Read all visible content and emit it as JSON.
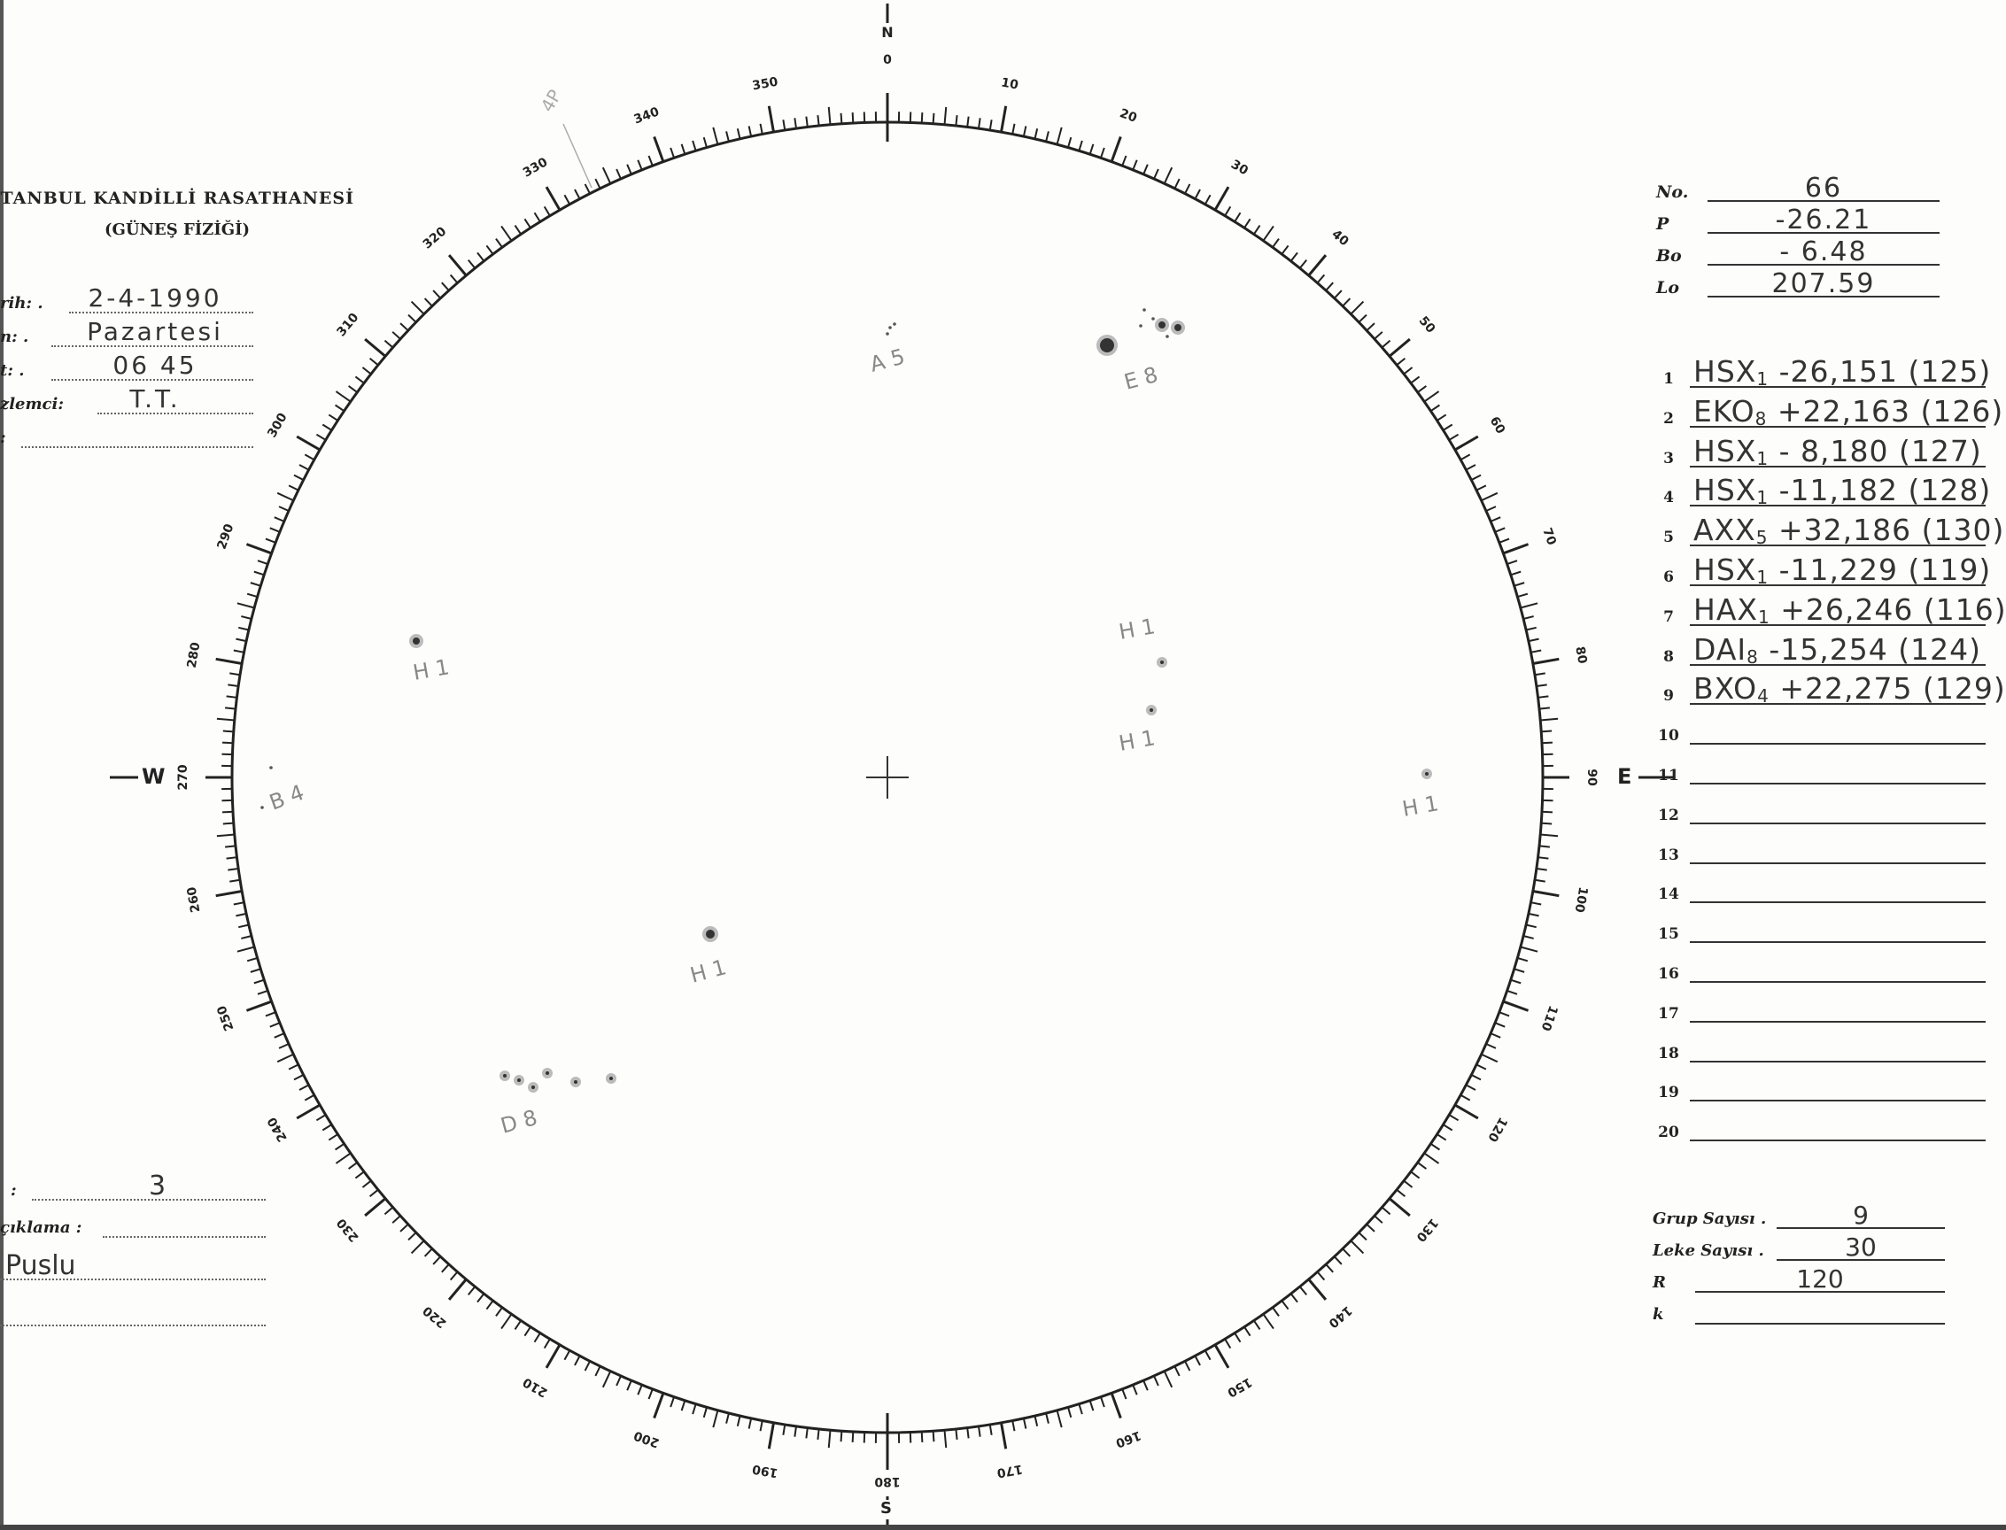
{
  "header": {
    "title": "TANBUL  KANDİLLİ  RASATHANESİ",
    "subtitle": "(GÜNEŞ FİZİĞİ)"
  },
  "observation": {
    "fields": [
      {
        "label": "rih: .",
        "value": "2-4-1990"
      },
      {
        "label": "n: .",
        "value": "Pazartesi"
      },
      {
        "label": "t: .",
        "value": "06 45"
      },
      {
        "label": "zlemci:",
        "value": "T.T."
      },
      {
        "label": ":",
        "value": ""
      }
    ]
  },
  "parameters": [
    {
      "label": "No.",
      "value": "66"
    },
    {
      "label": "P",
      "value": "-26.21"
    },
    {
      "label": "Bo",
      "value": "- 6.48"
    },
    {
      "label": "Lo",
      "value": "207.59"
    }
  ],
  "groups": [
    {
      "n": "1",
      "cls": "HSX",
      "sub": "1",
      "pos": "-26,151",
      "id": "(125)"
    },
    {
      "n": "2",
      "cls": "EKO",
      "sub": "8",
      "pos": "+22,163",
      "id": "(126)"
    },
    {
      "n": "3",
      "cls": "HSX",
      "sub": "1",
      "pos": "- 8,180",
      "id": "(127)"
    },
    {
      "n": "4",
      "cls": "HSX",
      "sub": "1",
      "pos": "-11,182",
      "id": "(128)"
    },
    {
      "n": "5",
      "cls": "AXX",
      "sub": "5",
      "pos": "+32,186",
      "id": "(130)"
    },
    {
      "n": "6",
      "cls": "HSX",
      "sub": "1",
      "pos": "-11,229",
      "id": "(119)"
    },
    {
      "n": "7",
      "cls": "HAX",
      "sub": "1",
      "pos": "+26,246",
      "id": "(116)"
    },
    {
      "n": "8",
      "cls": "DAI",
      "sub": "8",
      "pos": "-15,254",
      "id": "(124)"
    },
    {
      "n": "9",
      "cls": "BXO",
      "sub": "4",
      "pos": "+22,275",
      "id": "(129)"
    },
    {
      "n": "10"
    },
    {
      "n": "11"
    },
    {
      "n": "12"
    },
    {
      "n": "13"
    },
    {
      "n": "14"
    },
    {
      "n": "15"
    },
    {
      "n": "16"
    },
    {
      "n": "17"
    },
    {
      "n": "18"
    },
    {
      "n": "19"
    },
    {
      "n": "20"
    }
  ],
  "statistics": [
    {
      "label": "Grup Sayısı .",
      "value": "9"
    },
    {
      "label": "Leke Sayısı .",
      "value": "30"
    },
    {
      "label": "R",
      "value": "120"
    },
    {
      "label": "k",
      "value": ""
    }
  ],
  "notes": {
    "row1_label": ":",
    "row1_value": "3",
    "row2_label": "çıklama :",
    "row3_value": "Puslu"
  },
  "disk": {
    "cardinal": {
      "north": "N",
      "south": "S",
      "east": "E",
      "west": "W"
    },
    "scale_labels": [
      "0",
      "10",
      "20",
      "30",
      "40",
      "50",
      "60",
      "70",
      "80",
      "90",
      "100",
      "110",
      "120",
      "130",
      "140",
      "150",
      "160",
      "170",
      "180",
      "190",
      "200",
      "210",
      "220",
      "230",
      "240",
      "250",
      "260",
      "270",
      "280",
      "290",
      "300",
      "310",
      "320",
      "330",
      "340",
      "350"
    ],
    "pencil_mark": "4P",
    "sketch_labels": [
      "A 5",
      "E 8",
      "H 1",
      "H 1",
      "H 1",
      "H 1",
      "H 1",
      "D 8",
      "B 4"
    ]
  }
}
